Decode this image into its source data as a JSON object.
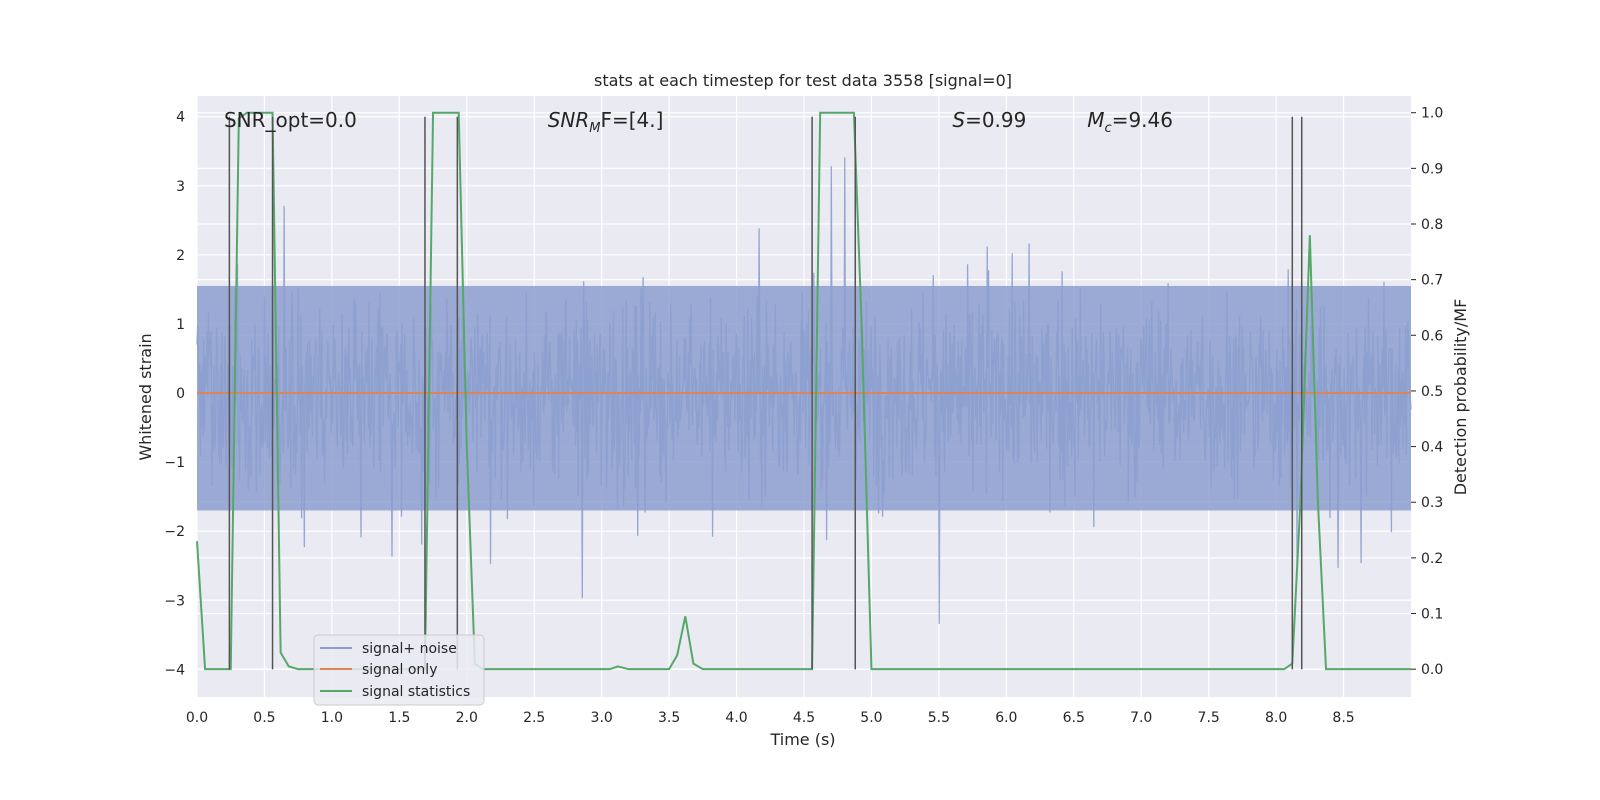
{
  "chart_data": {
    "type": "line",
    "title": "stats at each timestep for test data 3558 [signal=0]",
    "xlabel": "Time (s)",
    "ylabel": "Whitened strain",
    "ylabel_right": "Detection probability/MF",
    "xlim": [
      0.0,
      9.0
    ],
    "ylim": [
      -4.4,
      4.3
    ],
    "ylim_right": [
      -0.05,
      1.03
    ],
    "x_ticks": [
      0.0,
      0.5,
      1.0,
      1.5,
      2.0,
      2.5,
      3.0,
      3.5,
      4.0,
      4.5,
      5.0,
      5.5,
      6.0,
      6.5,
      7.0,
      7.5,
      8.0,
      8.5
    ],
    "x_tick_labels": [
      "0.0",
      "0.5",
      "1.0",
      "1.5",
      "2.0",
      "2.5",
      "3.0",
      "3.5",
      "4.0",
      "4.5",
      "5.0",
      "5.5",
      "6.0",
      "6.5",
      "7.0",
      "7.5",
      "8.0",
      "8.5"
    ],
    "y_ticks": [
      -4,
      -3,
      -2,
      -1,
      0,
      1,
      2,
      3,
      4
    ],
    "y_tick_labels": [
      "−4",
      "−3",
      "−2",
      "−1",
      "0",
      "1",
      "2",
      "3",
      "4"
    ],
    "y_right_ticks": [
      0.0,
      0.1,
      0.2,
      0.3,
      0.4,
      0.5,
      0.6,
      0.7,
      0.8,
      0.9,
      1.0
    ],
    "y_right_tick_labels": [
      "0.0",
      "0.1",
      "0.2",
      "0.3",
      "0.4",
      "0.5",
      "0.6",
      "0.7",
      "0.8",
      "0.9",
      "1.0"
    ],
    "grid": true,
    "legend_position": "lower-left",
    "series": [
      {
        "name": "signal+ noise",
        "color": "#8c9fcf",
        "axis": "left",
        "kind": "noise",
        "band": [
          -1.7,
          1.55
        ],
        "min": -4.0,
        "max": 3.9
      },
      {
        "name": "signal only",
        "color": "#dd8452",
        "axis": "left",
        "x": [
          0.0,
          9.0
        ],
        "y": [
          0.0,
          0.0
        ]
      },
      {
        "name": "signal statistics",
        "color": "#55a868",
        "axis": "right",
        "x": [
          0.0,
          0.06,
          0.12,
          0.18,
          0.25,
          0.31,
          0.37,
          0.43,
          0.5,
          0.56,
          0.62,
          0.68,
          0.75,
          0.81,
          0.87,
          1.0,
          1.25,
          1.5,
          1.65,
          1.69,
          1.75,
          1.94,
          2.0,
          2.06,
          2.12,
          2.25,
          2.5,
          3.0,
          3.06,
          3.12,
          3.2,
          3.25,
          3.5,
          3.56,
          3.62,
          3.68,
          3.75,
          4.0,
          4.5,
          4.56,
          4.62,
          4.87,
          4.93,
          5.0,
          5.5,
          6.0,
          7.0,
          7.5,
          8.0,
          8.06,
          8.12,
          8.18,
          8.25,
          8.31,
          8.37,
          8.5,
          9.0
        ],
        "y": [
          0.23,
          0.0,
          0.0,
          0.0,
          0.0,
          0.99,
          1.0,
          1.0,
          1.0,
          1.0,
          0.03,
          0.005,
          0.0,
          0.0,
          0.0,
          0.0,
          0.0,
          0.0,
          0.0,
          0.0,
          1.0,
          1.0,
          0.4,
          0.01,
          0.0,
          0.0,
          0.0,
          0.0,
          0.0,
          0.005,
          0.0,
          0.0,
          0.0,
          0.025,
          0.095,
          0.01,
          0.0,
          0.0,
          0.0,
          0.0,
          1.0,
          1.0,
          0.6,
          0.0,
          0.0,
          0.0,
          0.0,
          0.0,
          0.0,
          0.0,
          0.01,
          0.3,
          0.78,
          0.3,
          0.0,
          0.0,
          0.0
        ]
      }
    ],
    "vertical_lines": [
      0.24,
      0.56,
      1.69,
      1.93,
      4.56,
      4.88,
      8.12,
      8.19
    ],
    "vertical_line_range": [
      -4.0,
      4.0
    ],
    "annotations": [
      {
        "text": "SNR_opt=0.0",
        "x": 0.2,
        "y": 3.95
      },
      {
        "text": "SNR_MF=[4.]",
        "x": 2.6,
        "y": 3.95,
        "kind": "sub",
        "base": "SNR",
        "sub": "M",
        "rest": "F=[4.]"
      },
      {
        "text": "S=0.99",
        "x": 5.6,
        "y": 3.95,
        "kind": "italic-first",
        "base": "S",
        "rest": "=0.99"
      },
      {
        "text": "M_c=9.46",
        "x": 6.6,
        "y": 3.95,
        "kind": "sub",
        "base": "M",
        "sub": "c",
        "rest": "=9.46"
      }
    ]
  }
}
